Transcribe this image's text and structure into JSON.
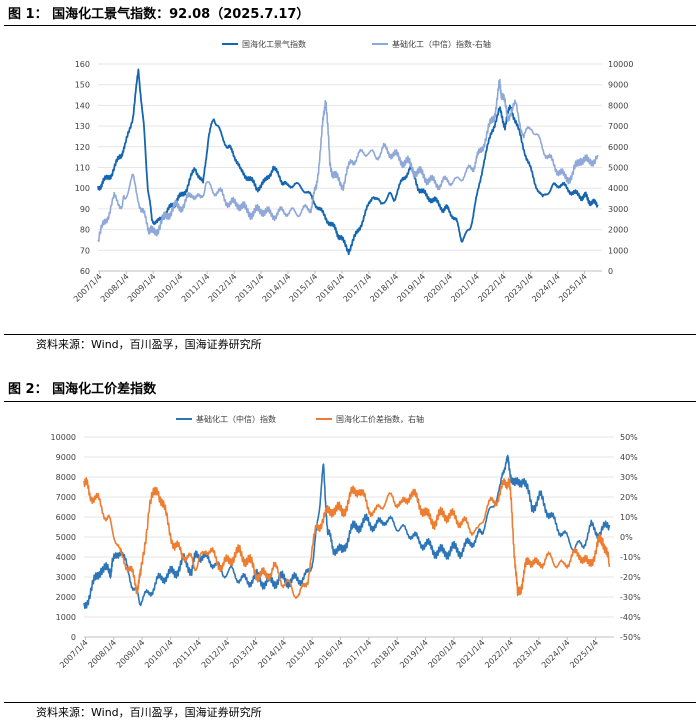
{
  "figure1": {
    "title": "图 1：  国海化工景气指数：92.08（2025.7.17）",
    "source": "资料来源：Wind，百川盈孚，国海证券研究所"
  },
  "figure2": {
    "title": "图 2：  国海化工价差指数",
    "source": "资料来源：Wind，百川盈孚，国海证券研究所"
  },
  "colors": {
    "dark_blue": "#1565b0",
    "light_blue": "#8fa8d8",
    "orange": "#ed7d31",
    "mid_blue": "#2e75b6"
  },
  "chart_data": [
    {
      "type": "line",
      "x_tick_labels": [
        "2007/1/4",
        "2008/1/4",
        "2009/1/4",
        "2010/1/4",
        "2011/1/4",
        "2012/1/4",
        "2013/1/4",
        "2014/1/4",
        "2015/1/4",
        "2016/1/4",
        "2017/1/4",
        "2018/1/4",
        "2019/1/4",
        "2020/1/4",
        "2021/1/4",
        "2022/1/4",
        "2023/1/4",
        "2024/1/4",
        "2025/1/4"
      ],
      "ylim": [
        60,
        160
      ],
      "y_ticks": [
        60,
        70,
        80,
        90,
        100,
        110,
        120,
        130,
        140,
        150,
        160
      ],
      "y2lim": [
        0,
        10000
      ],
      "y2_ticks": [
        0,
        1000,
        2000,
        3000,
        4000,
        5000,
        6000,
        7000,
        8000,
        9000,
        10000
      ],
      "series": [
        {
          "name": "国海化工景气指数",
          "axis": "left",
          "x": [
            2007.0,
            2007.2,
            2007.5,
            2007.8,
            2008.0,
            2008.3,
            2008.5,
            2008.7,
            2008.85,
            2009.0,
            2009.2,
            2009.5,
            2009.8,
            2010.0,
            2010.3,
            2010.6,
            2010.9,
            2011.1,
            2011.3,
            2011.5,
            2011.8,
            2012.0,
            2012.3,
            2012.6,
            2012.9,
            2013.2,
            2013.5,
            2013.8,
            2014.0,
            2014.3,
            2014.6,
            2014.9,
            2015.2,
            2015.5,
            2015.8,
            2016.0,
            2016.3,
            2016.6,
            2016.9,
            2017.2,
            2017.5,
            2017.8,
            2018.0,
            2018.3,
            2018.6,
            2018.9,
            2019.2,
            2019.5,
            2019.8,
            2020.0,
            2020.3,
            2020.5,
            2020.8,
            2021.0,
            2021.3,
            2021.6,
            2021.9,
            2022.1,
            2022.3,
            2022.6,
            2022.9,
            2023.2,
            2023.5,
            2023.8,
            2024.0,
            2024.3,
            2024.6,
            2024.9,
            2025.1,
            2025.3,
            2025.54
          ],
          "values": [
            100,
            103,
            107,
            115,
            120,
            135,
            157,
            130,
            100,
            85,
            83,
            88,
            92,
            95,
            100,
            110,
            102,
            125,
            134,
            128,
            120,
            118,
            108,
            105,
            100,
            103,
            110,
            104,
            101,
            102,
            100,
            96,
            90,
            85,
            80,
            76,
            70,
            78,
            87,
            97,
            92,
            97,
            95,
            104,
            110,
            100,
            96,
            94,
            90,
            90,
            84,
            75,
            80,
            92,
            112,
            127,
            138,
            130,
            140,
            128,
            115,
            103,
            95,
            100,
            102,
            101,
            98,
            96,
            96,
            93,
            92.08
          ]
        },
        {
          "name": "基础化工（中信）指数-右轴",
          "axis": "right",
          "x": [
            2007.0,
            2007.3,
            2007.6,
            2007.9,
            2008.0,
            2008.3,
            2008.6,
            2008.85,
            2009.0,
            2009.3,
            2009.6,
            2009.9,
            2010.2,
            2010.5,
            2010.8,
            2011.0,
            2011.3,
            2011.6,
            2011.9,
            2012.2,
            2012.5,
            2012.8,
            2013.1,
            2013.4,
            2013.7,
            2014.0,
            2014.3,
            2014.6,
            2014.9,
            2015.1,
            2015.3,
            2015.45,
            2015.6,
            2015.8,
            2016.1,
            2016.4,
            2016.7,
            2017.0,
            2017.3,
            2017.6,
            2017.9,
            2018.2,
            2018.5,
            2018.8,
            2019.1,
            2019.4,
            2019.7,
            2020.0,
            2020.3,
            2020.6,
            2020.9,
            2021.1,
            2021.4,
            2021.7,
            2021.9,
            2022.0,
            2022.2,
            2022.5,
            2022.8,
            2023.1,
            2023.4,
            2023.7,
            2024.0,
            2024.3,
            2024.6,
            2024.9,
            2025.2,
            2025.54
          ],
          "values": [
            1500,
            2500,
            3500,
            3200,
            3600,
            4500,
            3000,
            2200,
            1800,
            2200,
            2800,
            3100,
            3200,
            3800,
            3400,
            4200,
            3900,
            3700,
            3200,
            3300,
            2900,
            2800,
            3000,
            2700,
            2800,
            2900,
            2800,
            2900,
            3100,
            4000,
            6500,
            8500,
            5200,
            4500,
            4200,
            5300,
            5600,
            5800,
            5500,
            5900,
            5700,
            5400,
            5200,
            4800,
            4600,
            4300,
            4200,
            4400,
            4300,
            4700,
            5000,
            5500,
            6500,
            7500,
            9000,
            8500,
            7500,
            8000,
            6500,
            7000,
            6200,
            5500,
            5000,
            4500,
            4600,
            5500,
            5200,
            5600
          ]
        }
      ]
    },
    {
      "type": "line",
      "x_tick_labels": [
        "2007/1/4",
        "2008/1/4",
        "2009/1/4",
        "2010/1/4",
        "2011/1/4",
        "2012/1/4",
        "2013/1/4",
        "2014/1/4",
        "2015/1/4",
        "2016/1/4",
        "2017/1/4",
        "2018/1/4",
        "2019/1/4",
        "2020/1/4",
        "2021/1/4",
        "2022/1/4",
        "2023/1/4",
        "2024/1/4",
        "2025/1/4"
      ],
      "ylim": [
        0,
        10000
      ],
      "y_ticks": [
        0,
        1000,
        2000,
        3000,
        4000,
        5000,
        6000,
        7000,
        8000,
        9000,
        10000
      ],
      "y2lim": [
        -50,
        50
      ],
      "y2_ticks": [
        "-50%",
        "-40%",
        "-30%",
        "-20%",
        "-10%",
        "0%",
        "10%",
        "20%",
        "30%",
        "40%",
        "50%"
      ],
      "series": [
        {
          "name": "基础化工（中信）指数",
          "axis": "left",
          "x": [
            2007.0,
            2007.3,
            2007.6,
            2007.9,
            2008.0,
            2008.3,
            2008.6,
            2008.85,
            2009.0,
            2009.3,
            2009.6,
            2009.9,
            2010.2,
            2010.5,
            2010.8,
            2011.0,
            2011.3,
            2011.6,
            2011.9,
            2012.2,
            2012.5,
            2012.8,
            2013.1,
            2013.4,
            2013.7,
            2014.0,
            2014.3,
            2014.6,
            2014.9,
            2015.1,
            2015.3,
            2015.45,
            2015.6,
            2015.8,
            2016.1,
            2016.4,
            2016.7,
            2017.0,
            2017.3,
            2017.6,
            2017.9,
            2018.2,
            2018.5,
            2018.8,
            2019.1,
            2019.4,
            2019.7,
            2020.0,
            2020.3,
            2020.6,
            2020.9,
            2021.1,
            2021.4,
            2021.7,
            2021.9,
            2022.0,
            2022.2,
            2022.5,
            2022.8,
            2023.1,
            2023.4,
            2023.7,
            2024.0,
            2024.3,
            2024.6,
            2024.9,
            2025.2,
            2025.54
          ],
          "values": [
            1500,
            2500,
            3500,
            3200,
            3600,
            4500,
            3000,
            2200,
            1800,
            2200,
            2800,
            3100,
            3200,
            3800,
            3400,
            4200,
            3900,
            3700,
            3200,
            3300,
            2900,
            2800,
            3000,
            2700,
            2800,
            2900,
            2800,
            2900,
            3100,
            4000,
            6500,
            8500,
            5200,
            4500,
            4200,
            5300,
            5600,
            5800,
            5500,
            5900,
            5700,
            5400,
            5200,
            4800,
            4600,
            4300,
            4200,
            4400,
            4300,
            4700,
            5000,
            5500,
            6500,
            7500,
            9000,
            8500,
            7500,
            8000,
            6500,
            7000,
            6200,
            5500,
            5000,
            4500,
            4600,
            5500,
            5200,
            5600
          ]
        },
        {
          "name": "国海化工价差指数，右轴",
          "axis": "right",
          "x": [
            2007.0,
            2007.2,
            2007.5,
            2007.8,
            2008.0,
            2008.3,
            2008.6,
            2008.85,
            2009.0,
            2009.3,
            2009.6,
            2009.9,
            2010.2,
            2010.5,
            2010.8,
            2011.0,
            2011.3,
            2011.6,
            2011.9,
            2012.2,
            2012.5,
            2012.8,
            2013.1,
            2013.4,
            2013.7,
            2014.0,
            2014.3,
            2014.6,
            2014.9,
            2015.2,
            2015.5,
            2015.8,
            2016.1,
            2016.4,
            2016.7,
            2017.0,
            2017.3,
            2017.6,
            2017.9,
            2018.2,
            2018.5,
            2018.8,
            2019.1,
            2019.4,
            2019.7,
            2020.0,
            2020.3,
            2020.6,
            2020.9,
            2021.2,
            2021.5,
            2021.8,
            2022.0,
            2022.15,
            2022.3,
            2022.5,
            2022.7,
            2023.0,
            2023.3,
            2023.6,
            2023.9,
            2024.2,
            2024.5,
            2024.8,
            2025.1,
            2025.3,
            2025.54
          ],
          "values": [
            28,
            22,
            18,
            10,
            5,
            -10,
            -15,
            -25,
            -20,
            15,
            25,
            10,
            -5,
            -8,
            -12,
            -15,
            -5,
            -10,
            -15,
            -10,
            -8,
            -12,
            -18,
            -20,
            -15,
            -22,
            -25,
            -30,
            -20,
            5,
            10,
            15,
            12,
            20,
            25,
            15,
            12,
            18,
            20,
            15,
            22,
            18,
            10,
            8,
            12,
            10,
            8,
            5,
            2,
            15,
            18,
            25,
            30,
            0,
            -30,
            -20,
            -10,
            -15,
            -10,
            -12,
            -15,
            -10,
            -8,
            -15,
            -5,
            0,
            -15
          ]
        }
      ]
    }
  ]
}
